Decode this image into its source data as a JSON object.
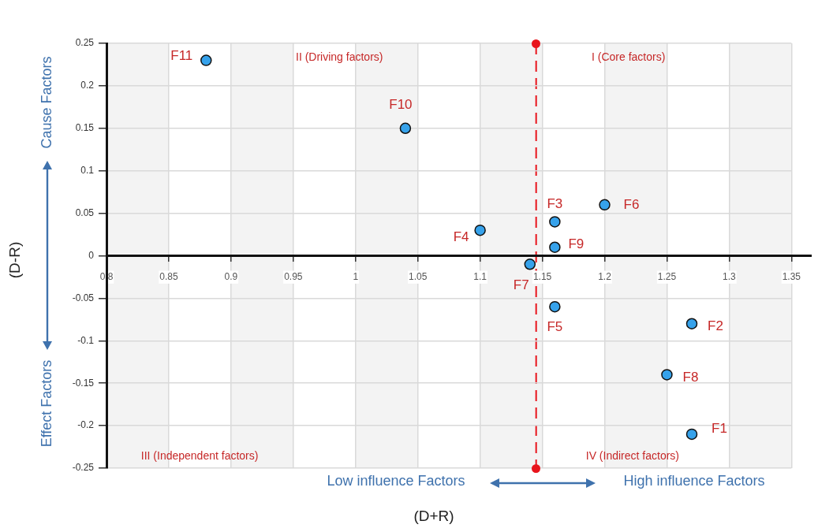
{
  "chart_data": {
    "type": "scatter",
    "xlabel": "(D+R)",
    "ylabel": "(D-R)",
    "x": [
      1.27,
      1.27,
      1.16,
      1.1,
      1.16,
      1.2,
      1.14,
      1.25,
      1.16,
      1.04,
      0.88
    ],
    "series": [
      {
        "color": "#36a2eb",
        "values": [
          -0.21,
          -0.08,
          0.04,
          0.03,
          -0.06,
          0.06,
          -0.01,
          -0.14,
          0.01,
          0.15,
          0.23
        ]
      }
    ],
    "marker": "circle",
    "grid": true,
    "legend": false,
    "xlim": [
      0.8,
      1.35
    ],
    "xticks": [
      0.8,
      0.85,
      0.9,
      0.95,
      1,
      1.05,
      1.1,
      1.15,
      1.2,
      1.25,
      1.3,
      1.35
    ],
    "ylim": [
      -0.25,
      0.25
    ],
    "yticks": [
      -0.25,
      -0.2,
      -0.15,
      -0.1,
      -0.05,
      0,
      0.05,
      0.1,
      0.15,
      0.2,
      0.25
    ],
    "ref_lines": [
      {
        "axis": "x",
        "value": 1.145,
        "color": "#e8141c",
        "line_style": "dashed"
      }
    ],
    "bands": [
      {
        "axis": "x",
        "from": 0.8,
        "to": 0.85,
        "color": "#f3f3f3"
      },
      {
        "axis": "x",
        "from": 0.9,
        "to": 0.95,
        "color": "#f3f3f3"
      },
      {
        "axis": "x",
        "from": 1.0,
        "to": 1.05,
        "color": "#f3f3f3"
      },
      {
        "axis": "x",
        "from": 1.1,
        "to": 1.15,
        "color": "#f3f3f3"
      },
      {
        "axis": "x",
        "from": 1.2,
        "to": 1.25,
        "color": "#f3f3f3"
      },
      {
        "axis": "x",
        "from": 1.3,
        "to": 1.35,
        "color": "#f3f3f3"
      }
    ],
    "annotations": [
      {
        "text": "F1",
        "x": 1.27,
        "y": -0.21
      },
      {
        "text": "F2",
        "x": 1.27,
        "y": -0.08
      },
      {
        "text": "F3",
        "x": 1.16,
        "y": 0.04
      },
      {
        "text": "F4",
        "x": 1.1,
        "y": 0.03
      },
      {
        "text": "F5",
        "x": 1.16,
        "y": -0.06
      },
      {
        "text": "F6",
        "x": 1.2,
        "y": 0.06
      },
      {
        "text": "F7",
        "x": 1.14,
        "y": -0.01
      },
      {
        "text": "F8",
        "x": 1.25,
        "y": -0.14
      },
      {
        "text": "F9",
        "x": 1.16,
        "y": 0.01
      },
      {
        "text": "F10",
        "x": 1.04,
        "y": 0.15
      },
      {
        "text": "F11",
        "x": 0.88,
        "y": 0.23
      },
      "I (Core factors)",
      "II (Driving factors)",
      "III (Independent factors)",
      "IV (Indirect factors)",
      "Cause Factors",
      "Effect Factors",
      "Low influence Factors",
      "High influence Factors"
    ]
  }
}
